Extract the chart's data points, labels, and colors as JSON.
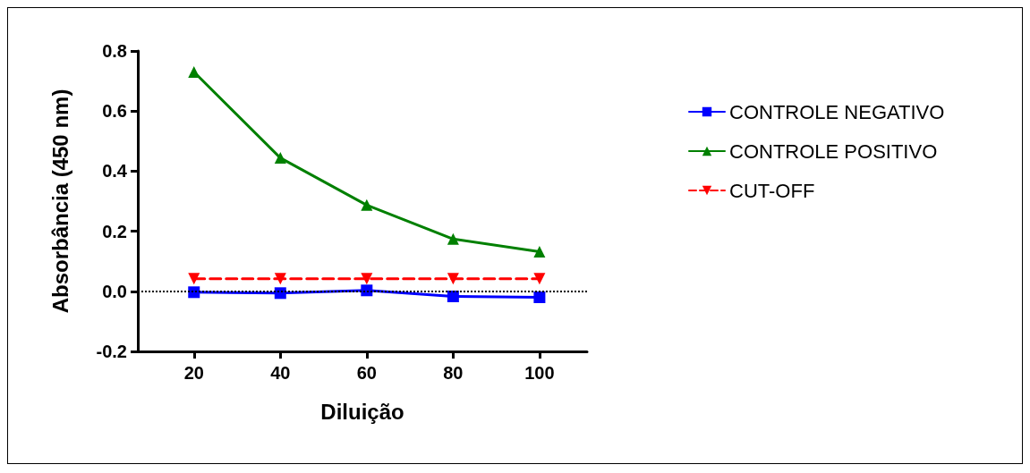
{
  "chart_data": {
    "type": "line",
    "xlabel": "Diluição",
    "ylabel": "Absorbância (450 nm)",
    "x": [
      20,
      40,
      60,
      80,
      100
    ],
    "series": [
      {
        "name": "CONTROLE NEGATIVO",
        "color": "#0000ff",
        "marker": "square",
        "line_style": "solid",
        "values": [
          -0.003,
          -0.006,
          0.003,
          -0.017,
          -0.02
        ]
      },
      {
        "name": "CONTROLE POSITIVO",
        "color": "#008000",
        "marker": "triangle",
        "line_style": "solid",
        "values": [
          0.73,
          0.444,
          0.287,
          0.174,
          0.132
        ]
      },
      {
        "name": "CUT-OFF",
        "color": "#ff0000",
        "marker": "triangle-down",
        "line_style": "dashed",
        "values": [
          0.042,
          0.042,
          0.042,
          0.042,
          0.042
        ]
      }
    ],
    "xlim": [
      7,
      111
    ],
    "xticks": [
      20,
      40,
      60,
      80,
      100
    ],
    "ylim": [
      -0.2,
      0.8
    ],
    "yticks": [
      -0.2,
      {
        "value": 0,
        "label": "0.0"
      },
      0.2,
      0.4,
      0.6,
      0.8
    ],
    "ref_lines": [
      {
        "axis": "y",
        "value": 0,
        "color": "#000000",
        "line_style": "dotted"
      }
    ],
    "grid": false,
    "legend": "right"
  }
}
